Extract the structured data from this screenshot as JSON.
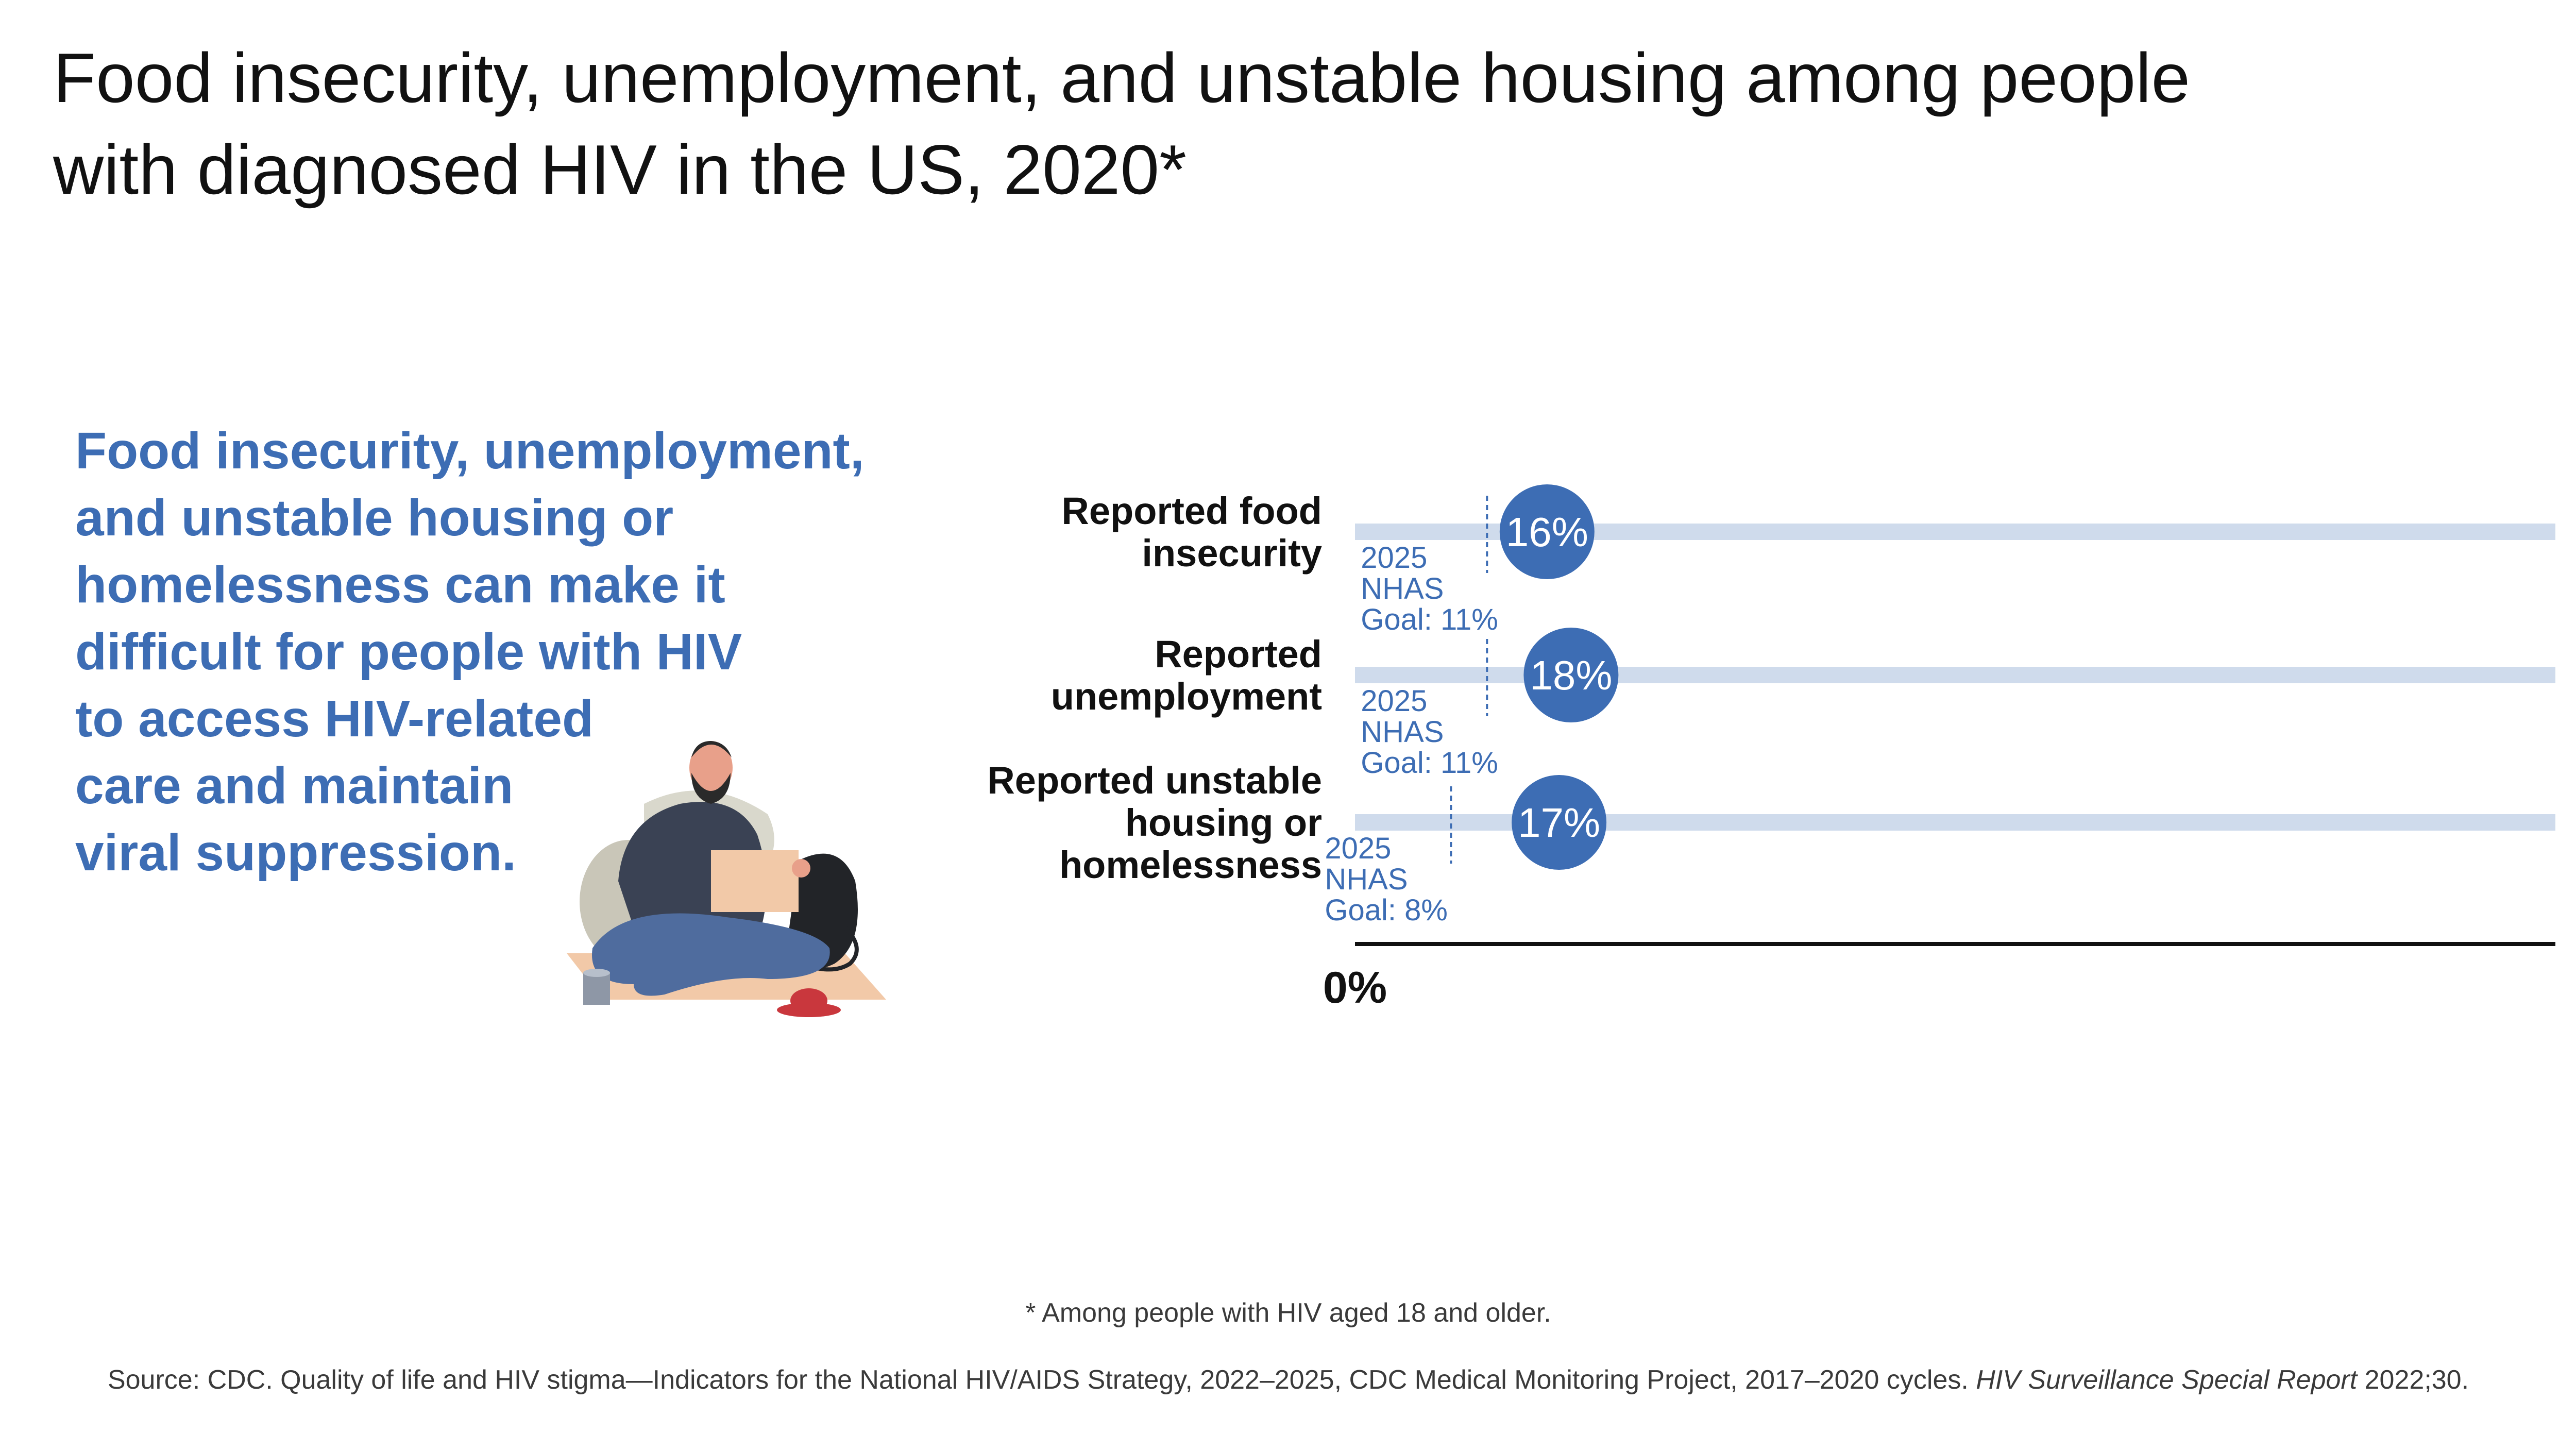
{
  "title": {
    "line1": "Food insecurity, unemployment, and unstable housing among people",
    "line2": "with diagnosed HIV in the US, 2020*"
  },
  "blurb": {
    "lines": [
      "Food insecurity, unemployment,",
      "and unstable housing or",
      "homelessness can make it",
      "difficult for people with HIV",
      "to access HIV-related",
      "care and maintain",
      "viral suppression."
    ]
  },
  "chart_data": {
    "type": "bar",
    "categories": [
      [
        "Reported food",
        "insecurity"
      ],
      [
        "Reported",
        "unemployment"
      ],
      [
        "Reported unstable",
        "housing or",
        "homelessness"
      ]
    ],
    "values": [
      16,
      18,
      17
    ],
    "value_labels": [
      "16%",
      "18%",
      "17%"
    ],
    "goals": [
      11,
      11,
      8
    ],
    "goal_labels": [
      [
        "2025",
        "NHAS",
        "Goal: 11%"
      ],
      [
        "2025",
        "NHAS",
        "Goal: 11%"
      ],
      [
        "2025",
        "NHAS",
        "Goal: 8%"
      ]
    ],
    "x_tick_label": "0%",
    "xlim": [
      0,
      100
    ],
    "colors": {
      "bubble": "#3d6db4",
      "track": "#cfdbec",
      "goal_text": "#3d6db4",
      "axis": "#111111"
    }
  },
  "footnote": "* Among people with HIV aged 18 and older.",
  "source": {
    "text": "Source: CDC. Quality of life and HIV stigma—Indicators for the National HIV/AIDS Strategy, 2022–2025, CDC Medical Monitoring Project, 2017–2020 cycles. ",
    "italic": "HIV Surveillance Special Report",
    "tail": " 2022;30."
  },
  "illustration": {
    "icon": "person-sitting-with-sign-icon"
  }
}
